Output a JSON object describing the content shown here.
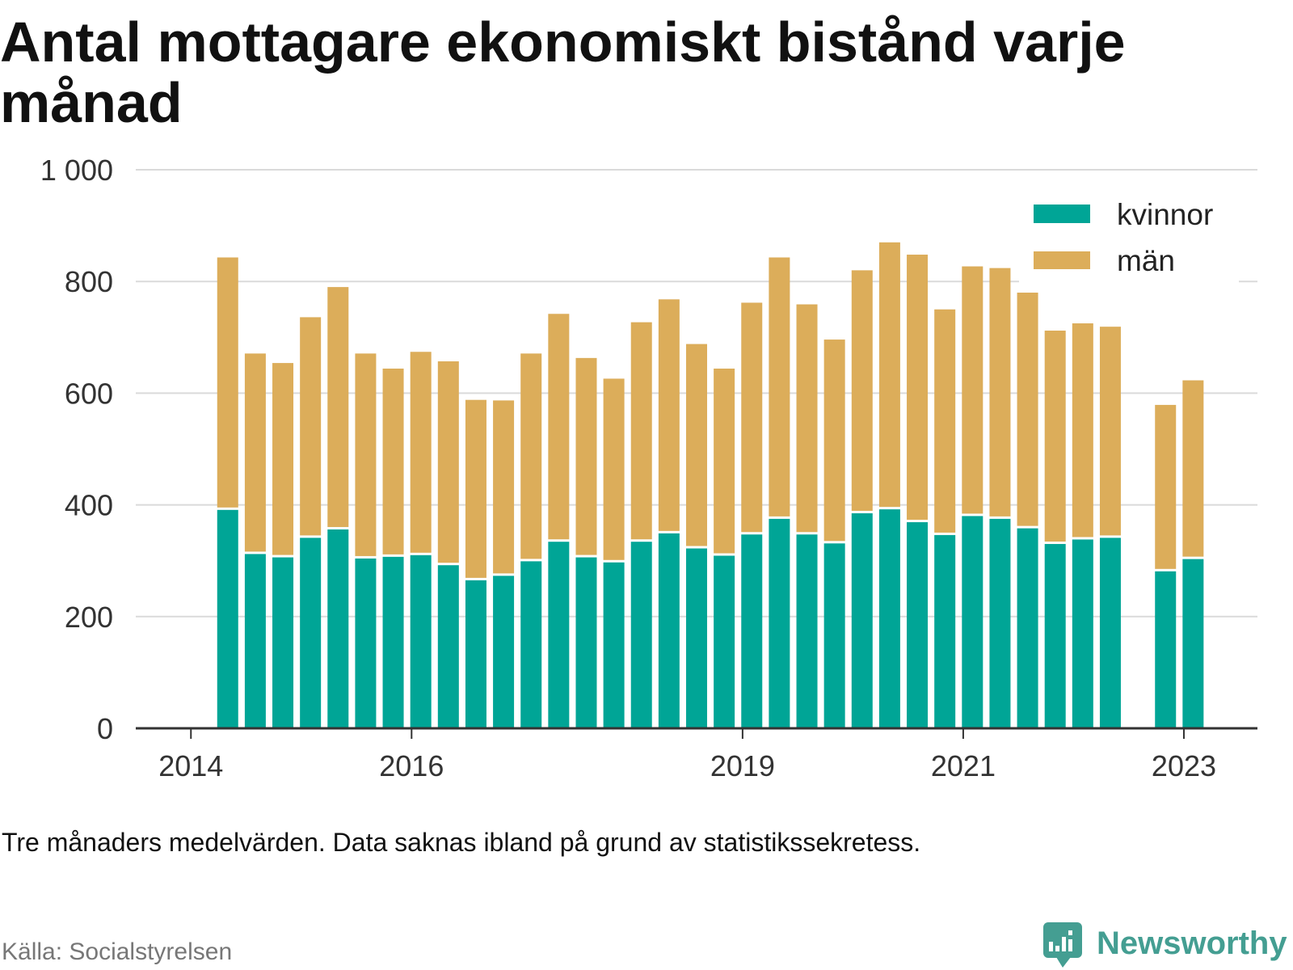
{
  "chart_data": {
    "type": "bar",
    "stacked": true,
    "title": "Antal mottagare ekonomiskt bistånd varje månad",
    "xlabel": "",
    "ylabel": "",
    "x": [
      "2014-05",
      "2014-08",
      "2014-11",
      "2015-02",
      "2015-05",
      "2015-08",
      "2015-11",
      "2016-02",
      "2016-05",
      "2016-08",
      "2016-11",
      "2017-02",
      "2017-05",
      "2017-08",
      "2017-11",
      "2018-02",
      "2018-05",
      "2018-08",
      "2018-11",
      "2019-02",
      "2019-05",
      "2019-08",
      "2019-11",
      "2020-02",
      "2020-05",
      "2020-08",
      "2020-11",
      "2021-02",
      "2021-05",
      "2021-08",
      "2021-11",
      "2022-02",
      "2022-05",
      "2022-11",
      "2023-02"
    ],
    "series": [
      {
        "name": "kvinnor",
        "color": "#00a596",
        "values": [
          391,
          312,
          306,
          341,
          356,
          304,
          307,
          310,
          292,
          265,
          273,
          299,
          334,
          306,
          297,
          334,
          349,
          322,
          309,
          347,
          375,
          347,
          331,
          385,
          392,
          369,
          346,
          380,
          375,
          358,
          330,
          338,
          341,
          281,
          303
        ]
      },
      {
        "name": "män",
        "color": "#dcad5a",
        "values": [
          452,
          359,
          348,
          395,
          434,
          367,
          337,
          364,
          365,
          323,
          314,
          372,
          408,
          357,
          329,
          393,
          419,
          366,
          335,
          415,
          468,
          412,
          365,
          435,
          478,
          479,
          404,
          447,
          449,
          422,
          382,
          387,
          378,
          298,
          320
        ]
      }
    ],
    "xlim": [
      "2013-07",
      "2023-09"
    ],
    "ylim": [
      0,
      1000
    ],
    "ytick_labels": [
      "0",
      "200",
      "400",
      "600",
      "800",
      "1 000"
    ],
    "xtick_labels": [
      "2014",
      "2016",
      "2019",
      "2021",
      "2023"
    ],
    "grid": true,
    "legend": "top-right"
  },
  "footer": {
    "note": "Tre månaders medelvärden. Data saknas ibland på grund av statistikssekretess.",
    "source": "Källa: Socialstyrelsen"
  },
  "logo": {
    "text": "Newsworthy",
    "icon": "chart-speech-bubble-icon",
    "color": "#449e92"
  }
}
